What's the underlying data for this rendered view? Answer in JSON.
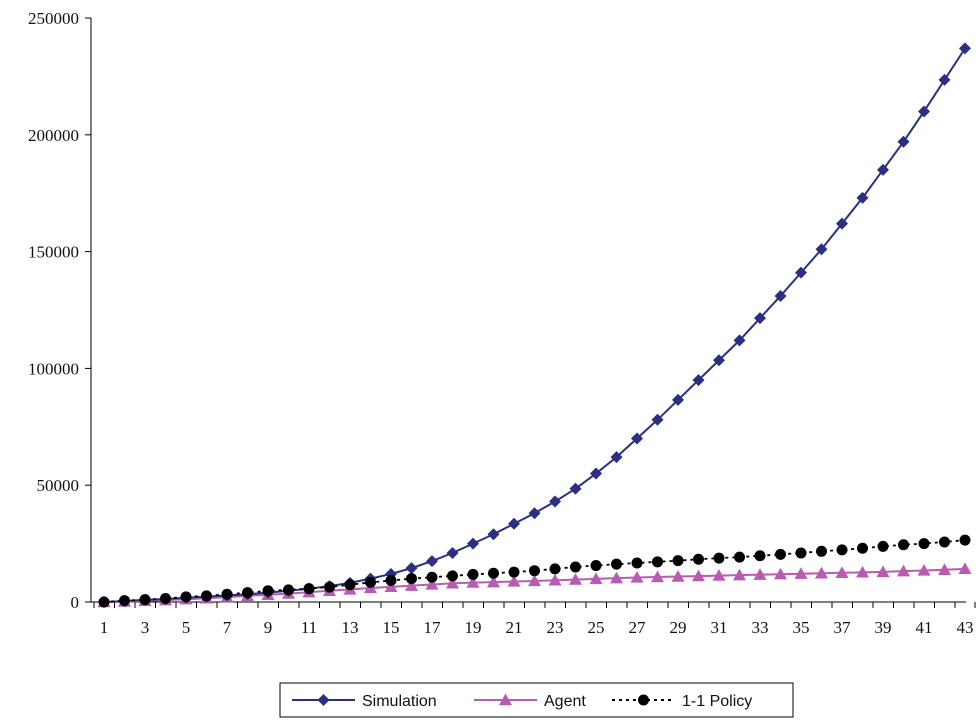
{
  "chart_data": {
    "type": "line",
    "title": "",
    "xlabel": "",
    "ylabel": "",
    "x": [
      1,
      2,
      3,
      4,
      5,
      6,
      7,
      8,
      9,
      10,
      11,
      12,
      13,
      14,
      15,
      16,
      17,
      18,
      19,
      20,
      21,
      22,
      23,
      24,
      25,
      26,
      27,
      28,
      29,
      30,
      31,
      32,
      33,
      34,
      35,
      36,
      37,
      38,
      39,
      40,
      41,
      42,
      43
    ],
    "x_tick_labels": [
      "1",
      "3",
      "5",
      "7",
      "9",
      "11",
      "13",
      "15",
      "17",
      "19",
      "21",
      "23",
      "25",
      "27",
      "29",
      "31",
      "33",
      "35",
      "37",
      "39",
      "41",
      "43"
    ],
    "ylim": [
      0,
      250000
    ],
    "y_ticks": [
      0,
      50000,
      100000,
      150000,
      200000,
      250000
    ],
    "y_tick_labels": [
      "0",
      "50000",
      "100000",
      "150000",
      "200000",
      "250000"
    ],
    "grid": false,
    "legend_position": "bottom",
    "series": [
      {
        "name": "Simulation",
        "color": "#2b2f84",
        "marker": "diamond",
        "line": "solid",
        "values": [
          0,
          400,
          900,
          1300,
          1800,
          2300,
          2800,
          3300,
          4000,
          4800,
          5700,
          6800,
          8200,
          10000,
          12000,
          14500,
          17500,
          21000,
          25000,
          29000,
          33500,
          38000,
          43000,
          48500,
          55000,
          62000,
          70000,
          78000,
          86500,
          95000,
          103500,
          112000,
          121500,
          131000,
          141000,
          151000,
          162000,
          173000,
          185000,
          197000,
          210000,
          223500,
          237000
        ]
      },
      {
        "name": "Agent",
        "color": "#b75cb1",
        "marker": "triangle",
        "line": "solid",
        "values": [
          0,
          200,
          500,
          800,
          1200,
          1600,
          2100,
          2600,
          3100,
          3600,
          4200,
          4800,
          5400,
          6000,
          6500,
          7000,
          7500,
          8000,
          8300,
          8500,
          8800,
          9000,
          9300,
          9600,
          9900,
          10200,
          10500,
          10700,
          10900,
          11100,
          11300,
          11500,
          11700,
          11900,
          12100,
          12300,
          12500,
          12700,
          12900,
          13200,
          13500,
          13800,
          14200
        ]
      },
      {
        "name": "1-1 Policy",
        "color": "#000000",
        "marker": "circle",
        "line": "dotted",
        "values": [
          0,
          600,
          1000,
          1500,
          2200,
          2600,
          3300,
          4000,
          4800,
          5200,
          5700,
          6400,
          7400,
          8400,
          9200,
          10000,
          10600,
          11200,
          11800,
          12300,
          12800,
          13400,
          14200,
          15000,
          15600,
          16200,
          16700,
          17200,
          17700,
          18300,
          18800,
          19200,
          19800,
          20400,
          21000,
          21700,
          22300,
          23000,
          23800,
          24500,
          25000,
          25700,
          26500
        ]
      }
    ]
  }
}
